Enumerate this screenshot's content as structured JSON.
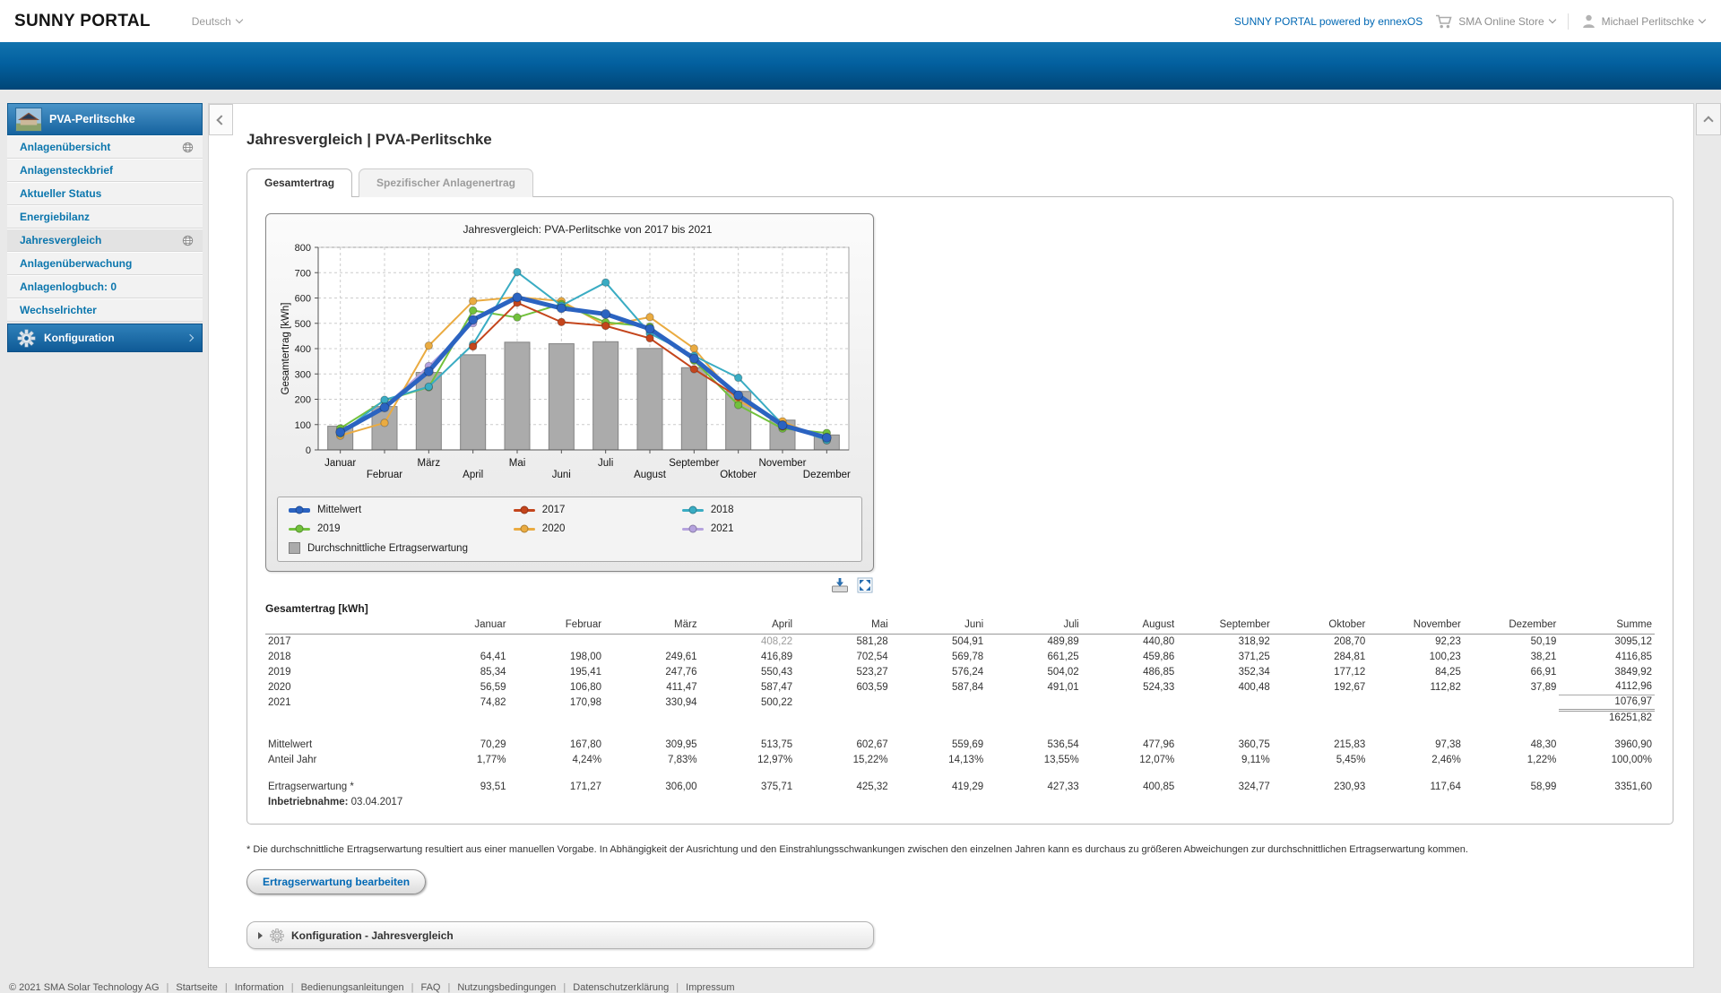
{
  "header": {
    "logo": "SUNNY PORTAL",
    "language_selector": "Deutsch",
    "powered_by_link": "SUNNY PORTAL powered by ennexOS",
    "store_link": "SMA Online Store",
    "user_name": "Michael Perlitschke"
  },
  "sidebar": {
    "plant_name": "PVA-Perlitschke",
    "items": [
      {
        "label": "Anlagenübersicht",
        "globe": true,
        "active": false
      },
      {
        "label": "Anlagensteckbrief",
        "globe": false,
        "active": false
      },
      {
        "label": "Aktueller Status",
        "globe": false,
        "active": false
      },
      {
        "label": "Energiebilanz",
        "globe": false,
        "active": false
      },
      {
        "label": "Jahresvergleich",
        "globe": true,
        "active": true
      },
      {
        "label": "Anlagenüberwachung",
        "globe": false,
        "active": false
      },
      {
        "label": "Anlagenlogbuch: 0",
        "globe": false,
        "active": false
      },
      {
        "label": "Wechselrichter",
        "globe": false,
        "active": false
      }
    ],
    "config_item": "Konfiguration"
  },
  "main": {
    "page_title": "Jahresvergleich | PVA-Perlitschke",
    "tabs": [
      {
        "label": "Gesamtertrag",
        "active": true
      },
      {
        "label": "Spezifischer Anlagenertrag",
        "active": false
      }
    ],
    "table": {
      "title": "Gesamtertrag [kWh]",
      "columns": [
        "Januar",
        "Februar",
        "März",
        "April",
        "Mai",
        "Juni",
        "Juli",
        "August",
        "September",
        "Oktober",
        "November",
        "Dezember",
        "Summe"
      ],
      "year_rows": [
        {
          "label": "2017",
          "values": [
            "",
            "",
            "",
            "408,22",
            "581,28",
            "504,91",
            "489,89",
            "440,80",
            "318,92",
            "208,70",
            "92,23",
            "50,19",
            "3095,12"
          ],
          "muted_cols": [
            3
          ],
          "sum_line": false
        },
        {
          "label": "2018",
          "values": [
            "64,41",
            "198,00",
            "249,61",
            "416,89",
            "702,54",
            "569,78",
            "661,25",
            "459,86",
            "371,25",
            "284,81",
            "100,23",
            "38,21",
            "4116,85"
          ],
          "muted_cols": [],
          "sum_line": false
        },
        {
          "label": "2019",
          "values": [
            "85,34",
            "195,41",
            "247,76",
            "550,43",
            "523,27",
            "576,24",
            "504,02",
            "486,85",
            "352,34",
            "177,12",
            "84,25",
            "66,91",
            "3849,92"
          ],
          "muted_cols": [],
          "sum_line": false
        },
        {
          "label": "2020",
          "values": [
            "56,59",
            "106,80",
            "411,47",
            "587,47",
            "603,59",
            "587,84",
            "491,01",
            "524,33",
            "400,48",
            "192,67",
            "112,82",
            "37,89",
            "4112,96"
          ],
          "muted_cols": [],
          "sum_line": false
        },
        {
          "label": "2021",
          "values": [
            "74,82",
            "170,98",
            "330,94",
            "500,22",
            "",
            "",
            "",
            "",
            "",
            "",
            "",
            "",
            "1076,97"
          ],
          "muted_cols": [],
          "sum_line": true
        }
      ],
      "grand_total": "16251,82",
      "summary_rows": [
        {
          "label": "Mittelwert",
          "values": [
            "70,29",
            "167,80",
            "309,95",
            "513,75",
            "602,67",
            "559,69",
            "536,54",
            "477,96",
            "360,75",
            "215,83",
            "97,38",
            "48,30",
            "3960,90"
          ]
        },
        {
          "label": "Anteil Jahr",
          "values": [
            "1,77%",
            "4,24%",
            "7,83%",
            "12,97%",
            "15,22%",
            "14,13%",
            "13,55%",
            "12,07%",
            "9,11%",
            "5,45%",
            "2,46%",
            "1,22%",
            "100,00%"
          ]
        }
      ],
      "expectation_row": {
        "label": "Ertragserwartung *",
        "values": [
          "93,51",
          "171,27",
          "306,00",
          "375,71",
          "425,32",
          "419,29",
          "427,33",
          "400,85",
          "324,77",
          "230,93",
          "117,64",
          "58,99",
          "3351,60"
        ]
      },
      "commissioning": {
        "label": "Inbetriebnahme:",
        "value": "03.04.2017"
      }
    },
    "footnote": "* Die durchschnittliche Ertragserwartung resultiert aus einer manuellen Vorgabe. In Abhängigkeit der Ausrichtung und den Einstrahlungsschwankungen zwischen den einzelnen Jahren kann es durchaus zu größeren Abweichungen zur durchschnittlichen Ertragserwartung kommen.",
    "edit_expectation_button": "Ertragserwartung bearbeiten",
    "config_panel_title": "Konfiguration - Jahresvergleich"
  },
  "chart_data": {
    "type": "bar",
    "title": "Jahresvergleich: PVA-Perlitschke von 2017 bis 2021",
    "ylabel": "Gesamtertrag [kWh]",
    "xlabel": "",
    "ylim": [
      0,
      800
    ],
    "ytick_step": 100,
    "grid": true,
    "legend_position": "bottom",
    "categories": [
      "Januar",
      "Februar",
      "März",
      "April",
      "Mai",
      "Juni",
      "Juli",
      "August",
      "September",
      "Oktober",
      "November",
      "Dezember"
    ],
    "bar_series": {
      "name": "Durchschnittliche Ertragserwartung",
      "color": "#ababab",
      "values": [
        93.51,
        171.27,
        306.0,
        375.71,
        425.32,
        419.29,
        427.33,
        400.85,
        324.77,
        230.93,
        117.64,
        58.99
      ]
    },
    "series": [
      {
        "name": "Mittelwert",
        "color": "#2b63c1",
        "width": 5,
        "values": [
          70.29,
          167.8,
          309.95,
          513.75,
          602.67,
          559.69,
          536.54,
          477.96,
          360.75,
          215.83,
          97.38,
          48.3
        ]
      },
      {
        "name": "2017",
        "color": "#c4451c",
        "width": 2,
        "values": [
          null,
          null,
          null,
          408.22,
          581.28,
          504.91,
          489.89,
          440.8,
          318.92,
          208.7,
          92.23,
          50.19
        ]
      },
      {
        "name": "2018",
        "color": "#3aacc3",
        "width": 2,
        "values": [
          64.41,
          198.0,
          249.61,
          416.89,
          702.54,
          569.78,
          661.25,
          459.86,
          371.25,
          284.81,
          100.23,
          38.21
        ]
      },
      {
        "name": "2019",
        "color": "#72c13c",
        "width": 2,
        "values": [
          85.34,
          195.41,
          247.76,
          550.43,
          523.27,
          576.24,
          504.02,
          486.85,
          352.34,
          177.12,
          84.25,
          66.91
        ]
      },
      {
        "name": "2020",
        "color": "#eaab41",
        "width": 2,
        "values": [
          56.59,
          106.8,
          411.47,
          587.47,
          603.59,
          587.84,
          491.01,
          524.33,
          400.48,
          192.67,
          112.82,
          37.89
        ]
      },
      {
        "name": "2021",
        "color": "#b5a2de",
        "width": 2,
        "values": [
          74.82,
          170.98,
          330.94,
          500.22,
          null,
          null,
          null,
          null,
          null,
          null,
          null,
          null
        ]
      }
    ]
  },
  "footer": {
    "copyright": "© 2021 SMA Solar Technology AG",
    "links": [
      "Startseite",
      "Information",
      "Bedienungsanleitungen",
      "FAQ",
      "Nutzungsbedingungen",
      "Datenschutzerklärung",
      "Impressum"
    ]
  }
}
